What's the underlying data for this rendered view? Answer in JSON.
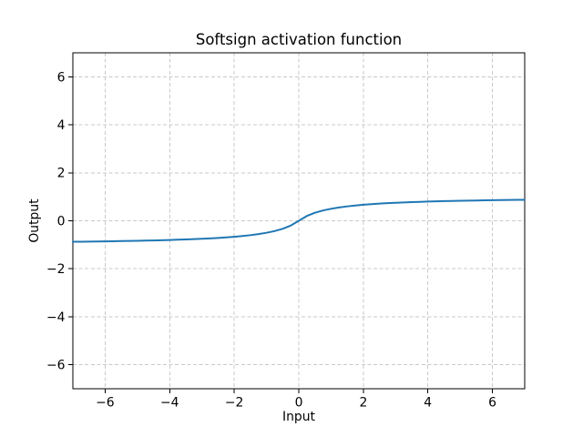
{
  "figure": {
    "background": "#ffffff"
  },
  "chart_data": {
    "type": "line",
    "title": "Softsign activation function",
    "xlabel": "Input",
    "ylabel": "Output",
    "xlim": [
      -7,
      7
    ],
    "ylim": [
      -7,
      7
    ],
    "xticks": [
      -6,
      -4,
      -2,
      0,
      2,
      4,
      6
    ],
    "yticks": [
      -6,
      -4,
      -2,
      0,
      2,
      4,
      6
    ],
    "grid": true,
    "grid_linestyle": "dashed",
    "grid_color": "#c9c9c9",
    "spine_color": "#000000",
    "legend": "none",
    "series": [
      {
        "name": "softsign",
        "color": "#1f77b4",
        "x": [
          -7.0,
          -6.75,
          -6.5,
          -6.25,
          -6.0,
          -5.75,
          -5.5,
          -5.25,
          -5.0,
          -4.75,
          -4.5,
          -4.25,
          -4.0,
          -3.75,
          -3.5,
          -3.25,
          -3.0,
          -2.75,
          -2.5,
          -2.25,
          -2.0,
          -1.75,
          -1.5,
          -1.25,
          -1.0,
          -0.75,
          -0.5,
          -0.25,
          0.0,
          0.25,
          0.5,
          0.75,
          1.0,
          1.25,
          1.5,
          1.75,
          2.0,
          2.25,
          2.5,
          2.75,
          3.0,
          3.25,
          3.5,
          3.75,
          4.0,
          4.25,
          4.5,
          4.75,
          5.0,
          5.25,
          5.5,
          5.75,
          6.0,
          6.25,
          6.5,
          6.75,
          7.0
        ],
        "y": [
          -0.875,
          -0.871,
          -0.8667,
          -0.8621,
          -0.8571,
          -0.8519,
          -0.8462,
          -0.84,
          -0.8333,
          -0.8261,
          -0.8182,
          -0.8095,
          -0.8,
          -0.7895,
          -0.7778,
          -0.7647,
          -0.75,
          -0.7333,
          -0.7143,
          -0.6923,
          -0.6667,
          -0.6364,
          -0.6,
          -0.5556,
          -0.5,
          -0.4286,
          -0.3333,
          -0.2,
          0.0,
          0.2,
          0.3333,
          0.4286,
          0.5,
          0.5556,
          0.6,
          0.6364,
          0.6667,
          0.6923,
          0.7143,
          0.7333,
          0.75,
          0.7647,
          0.7778,
          0.7895,
          0.8,
          0.8095,
          0.8182,
          0.8261,
          0.8333,
          0.84,
          0.8462,
          0.8519,
          0.8571,
          0.8621,
          0.8667,
          0.871,
          0.875
        ]
      }
    ]
  }
}
